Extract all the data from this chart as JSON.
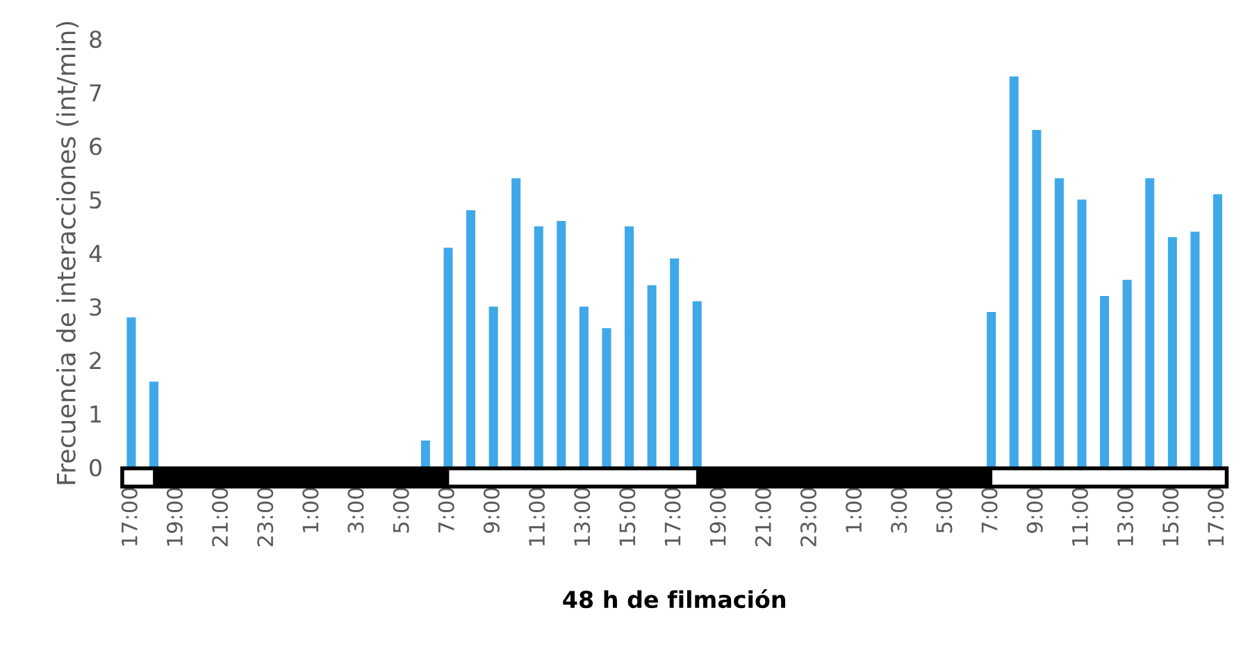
{
  "chart_data": {
    "type": "bar",
    "xlabel": "48 h de filmación",
    "ylabel": "Frecuencia de interacciones (int/min)",
    "categories": [
      "17:00",
      null,
      "19:00",
      null,
      "21:00",
      null,
      "23:00",
      null,
      "1:00",
      null,
      "3:00",
      null,
      "5:00",
      null,
      "7:00",
      null,
      "9:00",
      null,
      "11:00",
      null,
      "13:00",
      null,
      "15:00",
      null,
      "17:00",
      null,
      "19:00",
      null,
      "21:00",
      null,
      "23:00",
      null,
      "1:00",
      null,
      "3:00",
      null,
      "5:00",
      null,
      "7:00",
      null,
      "9:00",
      null,
      "11:00",
      null,
      "13:00",
      null,
      "15:00",
      null,
      "17:00"
    ],
    "series": [
      {
        "color": "#3ea8e8",
        "values": [
          2.8,
          1.6,
          0,
          0,
          0,
          0,
          0,
          0,
          0,
          0,
          0,
          0,
          0,
          0.5,
          4.1,
          4.8,
          3.0,
          5.4,
          4.5,
          4.6,
          3.0,
          2.6,
          4.5,
          3.4,
          3.9,
          3.1,
          0,
          0,
          0,
          0,
          0,
          0,
          0,
          0,
          0,
          0,
          0,
          0,
          2.9,
          7.3,
          6.3,
          5.4,
          5.0,
          3.2,
          3.5,
          5.4,
          4.3,
          4.4,
          5.1
        ]
      }
    ],
    "ylim": [
      0,
      8
    ],
    "yticks": [
      0,
      1,
      2,
      3,
      4,
      5,
      6,
      7,
      8
    ],
    "grid": false,
    "legend": false
  }
}
